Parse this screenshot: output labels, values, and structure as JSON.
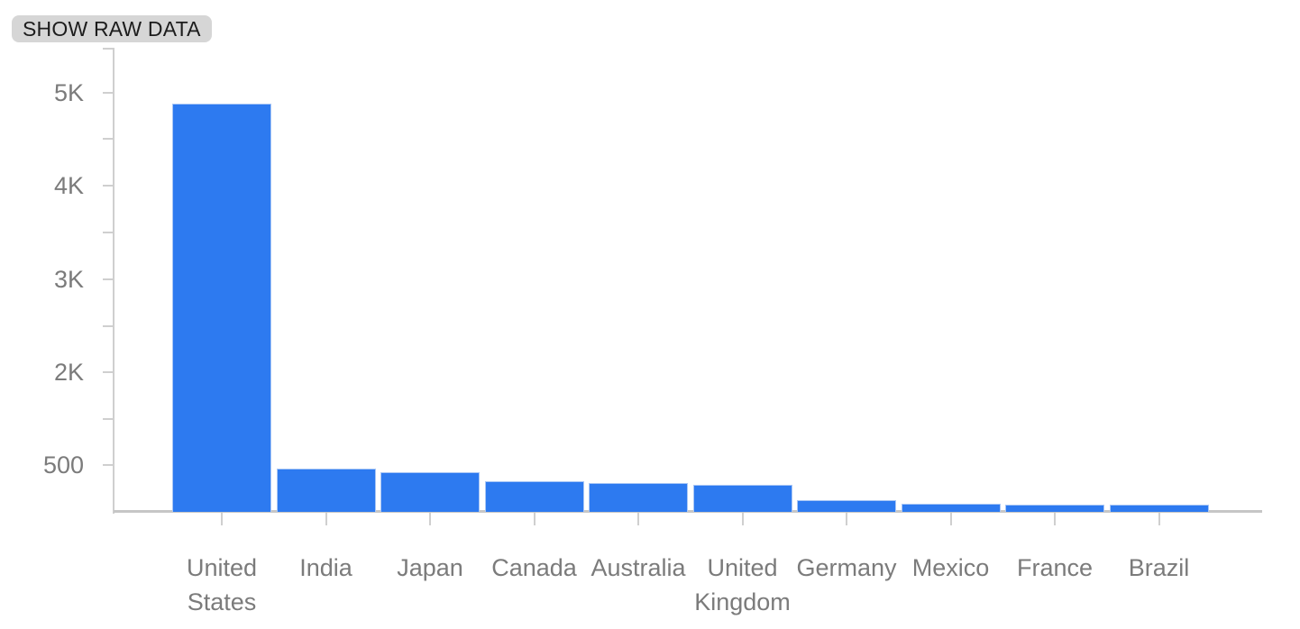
{
  "button": {
    "label": "SHOW RAW DATA"
  },
  "chart_data": {
    "type": "bar",
    "title": "",
    "xlabel": "",
    "ylabel": "",
    "categories": [
      "United States",
      "India",
      "Japan",
      "Canada",
      "Australia",
      "United Kingdom",
      "Germany",
      "Mexico",
      "France",
      "Brazil"
    ],
    "values": [
      4880,
      460,
      420,
      320,
      305,
      280,
      125,
      85,
      75,
      72
    ],
    "yticks": [
      {
        "label": "5K",
        "value": 5000
      },
      {
        "label": "4K",
        "value": 4000
      },
      {
        "label": "3K",
        "value": 3000
      },
      {
        "label": "2K",
        "value": 2000
      },
      {
        "label": "500",
        "value": 500
      }
    ],
    "ylim": [
      0,
      5000
    ],
    "grid": false,
    "legend": false,
    "bar_color": "#2d7af0",
    "axis_color": "#cfcfcf",
    "tick_label_color": "#7b7b7b"
  }
}
